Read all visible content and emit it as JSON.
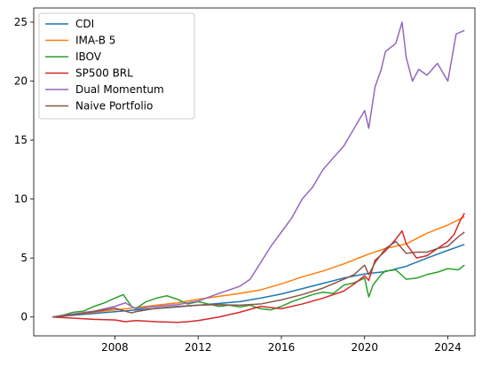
{
  "chart_data": {
    "type": "line",
    "xlim": [
      2004.1,
      2025.3
    ],
    "ylim": [
      -1.6,
      26.2
    ],
    "x_ticks": [
      2008,
      2012,
      2016,
      2020,
      2024
    ],
    "y_ticks": [
      0,
      5,
      10,
      15,
      20,
      25
    ],
    "grid": false,
    "legend_position": "top-left",
    "series": [
      {
        "name": "CDI",
        "color": "#1f77b4",
        "x": [
          2005.0,
          2006.0,
          2007.0,
          2008.0,
          2009.0,
          2010.0,
          2011.0,
          2012.0,
          2013.0,
          2014.0,
          2015.0,
          2016.0,
          2017.0,
          2018.0,
          2019.0,
          2020.0,
          2021.0,
          2022.0,
          2023.0,
          2024.0,
          2024.8
        ],
        "y": [
          0.0,
          0.15,
          0.3,
          0.45,
          0.6,
          0.72,
          0.85,
          1.0,
          1.15,
          1.3,
          1.6,
          1.95,
          2.4,
          2.85,
          3.3,
          3.65,
          3.85,
          4.3,
          5.0,
          5.65,
          6.15
        ]
      },
      {
        "name": "IMA-B 5",
        "color": "#ff7f0e",
        "x": [
          2005.0,
          2006.0,
          2007.0,
          2008.0,
          2009.0,
          2010.0,
          2011.0,
          2012.0,
          2013.0,
          2014.0,
          2015.0,
          2016.0,
          2017.0,
          2018.0,
          2019.0,
          2020.0,
          2020.3,
          2021.0,
          2022.0,
          2023.0,
          2024.0,
          2024.8
        ],
        "y": [
          0.0,
          0.2,
          0.4,
          0.6,
          0.8,
          1.0,
          1.2,
          1.5,
          1.75,
          2.0,
          2.3,
          2.8,
          3.4,
          3.9,
          4.5,
          5.2,
          5.4,
          5.8,
          6.2,
          7.1,
          7.8,
          8.5
        ]
      },
      {
        "name": "IBOV",
        "color": "#2ca02c",
        "x": [
          2005.0,
          2005.5,
          2006.0,
          2006.5,
          2007.0,
          2007.5,
          2008.0,
          2008.4,
          2008.8,
          2009.0,
          2009.5,
          2010.0,
          2010.5,
          2011.0,
          2011.5,
          2012.0,
          2012.5,
          2013.0,
          2013.5,
          2014.0,
          2014.5,
          2015.0,
          2015.5,
          2016.0,
          2016.5,
          2017.0,
          2017.5,
          2018.0,
          2018.5,
          2019.0,
          2019.5,
          2020.0,
          2020.2,
          2020.4,
          2020.8,
          2021.0,
          2021.5,
          2022.0,
          2022.5,
          2023.0,
          2023.5,
          2024.0,
          2024.5,
          2024.8
        ],
        "y": [
          0.0,
          0.15,
          0.4,
          0.5,
          0.9,
          1.2,
          1.6,
          1.9,
          0.9,
          0.7,
          1.3,
          1.6,
          1.8,
          1.5,
          1.1,
          1.3,
          1.1,
          0.9,
          1.0,
          0.85,
          1.0,
          0.7,
          0.6,
          0.9,
          1.3,
          1.6,
          1.9,
          2.1,
          2.0,
          2.7,
          2.9,
          3.3,
          1.7,
          2.7,
          3.6,
          3.9,
          4.0,
          3.2,
          3.3,
          3.6,
          3.8,
          4.1,
          4.0,
          4.4
        ]
      },
      {
        "name": "SP500 BRL",
        "color": "#d62728",
        "x": [
          2005.0,
          2006.0,
          2007.0,
          2008.0,
          2008.5,
          2009.0,
          2010.0,
          2011.0,
          2011.5,
          2012.0,
          2013.0,
          2014.0,
          2015.0,
          2016.0,
          2017.0,
          2018.0,
          2019.0,
          2019.5,
          2020.0,
          2020.2,
          2020.5,
          2021.0,
          2021.5,
          2021.8,
          2022.0,
          2022.5,
          2023.0,
          2023.5,
          2024.0,
          2024.3,
          2024.6,
          2024.8
        ],
        "y": [
          0.0,
          -0.1,
          -0.2,
          -0.25,
          -0.4,
          -0.3,
          -0.4,
          -0.45,
          -0.4,
          -0.3,
          0.0,
          0.4,
          0.9,
          0.7,
          1.1,
          1.6,
          2.2,
          2.8,
          3.5,
          3.1,
          4.8,
          5.6,
          6.6,
          7.3,
          6.2,
          5.0,
          5.2,
          5.8,
          6.4,
          7.0,
          8.2,
          8.8
        ]
      },
      {
        "name": "Dual Momentum",
        "color": "#9467bd",
        "x": [
          2005.0,
          2006.0,
          2007.0,
          2008.0,
          2008.5,
          2009.0,
          2010.0,
          2011.0,
          2012.0,
          2013.0,
          2014.0,
          2014.5,
          2015.0,
          2015.5,
          2016.0,
          2016.5,
          2017.0,
          2017.5,
          2018.0,
          2018.5,
          2019.0,
          2019.5,
          2020.0,
          2020.2,
          2020.5,
          2020.8,
          2021.0,
          2021.5,
          2021.8,
          2022.0,
          2022.3,
          2022.6,
          2023.0,
          2023.5,
          2024.0,
          2024.1,
          2024.4,
          2024.8
        ],
        "y": [
          0.0,
          0.25,
          0.5,
          0.9,
          1.2,
          0.7,
          0.9,
          1.05,
          1.35,
          2.0,
          2.6,
          3.2,
          4.6,
          6.0,
          7.2,
          8.4,
          10.0,
          11.0,
          12.5,
          13.5,
          14.5,
          16.0,
          17.5,
          16.0,
          19.5,
          21.0,
          22.5,
          23.2,
          25.0,
          22.0,
          20.0,
          21.0,
          20.5,
          21.5,
          20.0,
          21.0,
          24.0,
          24.3
        ]
      },
      {
        "name": "Naive Portfolio",
        "color": "#8c564b",
        "x": [
          2005.0,
          2006.0,
          2007.0,
          2008.0,
          2008.8,
          2009.0,
          2010.0,
          2011.0,
          2012.0,
          2013.0,
          2014.0,
          2015.0,
          2016.0,
          2017.0,
          2018.0,
          2019.0,
          2019.5,
          2020.0,
          2020.2,
          2020.5,
          2021.0,
          2021.5,
          2022.0,
          2022.5,
          2023.0,
          2023.5,
          2024.0,
          2024.5,
          2024.8
        ],
        "y": [
          0.0,
          0.2,
          0.45,
          0.75,
          0.35,
          0.45,
          0.75,
          0.9,
          1.0,
          1.05,
          1.0,
          1.1,
          1.45,
          1.9,
          2.45,
          3.2,
          3.6,
          4.4,
          3.6,
          4.6,
          5.8,
          6.4,
          5.4,
          5.5,
          5.5,
          5.8,
          6.0,
          6.8,
          7.2
        ]
      }
    ]
  }
}
